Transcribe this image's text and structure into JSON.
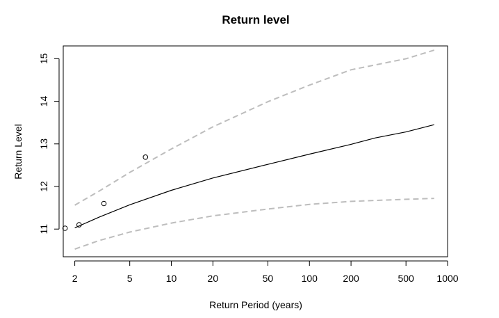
{
  "chart_data": {
    "type": "line",
    "title": "Return level",
    "xlabel": "Return Period (years)",
    "ylabel": "Return Level",
    "x_scale": "log",
    "xlim": [
      1.65,
      1000
    ],
    "ylim": [
      10.35,
      15.3
    ],
    "x_ticks": [
      2,
      5,
      10,
      20,
      50,
      100,
      200,
      500,
      1000
    ],
    "x_tick_labels": [
      "2",
      "5",
      "10",
      "20",
      "50",
      "100",
      "200",
      "500",
      "1000"
    ],
    "y_ticks": [
      11,
      12,
      13,
      14,
      15
    ],
    "y_tick_labels": [
      "11",
      "12",
      "13",
      "14",
      "15"
    ],
    "grid": false,
    "legend": "none",
    "series": [
      {
        "style": "solid",
        "color": "#000000",
        "x": [
          2.0,
          3.0,
          5.0,
          10.0,
          20.0,
          50.0,
          100.0,
          200.0,
          300.0,
          500.0,
          800.0
        ],
        "y": [
          11.03,
          11.28,
          11.57,
          11.91,
          12.2,
          12.52,
          12.76,
          12.99,
          13.14,
          13.28,
          13.45
        ]
      },
      {
        "style": "dashed",
        "color": "#bdbdbd",
        "x": [
          2.0,
          3.0,
          5.0,
          10.0,
          20.0,
          50.0,
          100.0,
          200.0,
          500.0,
          800.0
        ],
        "y": [
          11.56,
          11.89,
          12.33,
          12.88,
          13.4,
          13.99,
          14.38,
          14.74,
          15.0,
          15.2
        ]
      },
      {
        "style": "dashed",
        "color": "#bdbdbd",
        "x": [
          2.0,
          3.0,
          5.0,
          10.0,
          20.0,
          50.0,
          100.0,
          200.0,
          500.0,
          800.0
        ],
        "y": [
          10.53,
          10.73,
          10.93,
          11.14,
          11.31,
          11.47,
          11.58,
          11.65,
          11.7,
          11.72
        ]
      }
    ],
    "points": {
      "marker": "open-circle",
      "x": [
        1.7,
        2.15,
        3.25,
        6.5
      ],
      "y": [
        11.02,
        11.1,
        11.6,
        12.69
      ]
    }
  }
}
